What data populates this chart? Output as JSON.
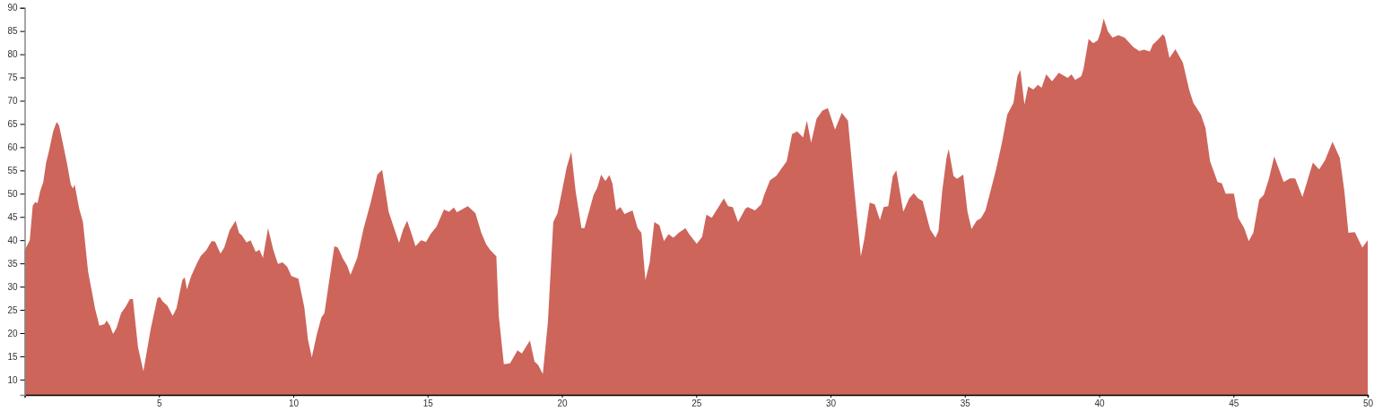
{
  "chart_data": {
    "type": "area",
    "color": "#cd655b",
    "x": [
      0,
      0.19,
      0.3,
      0.39,
      0.48,
      0.58,
      0.69,
      0.8,
      0.91,
      1.06,
      1.19,
      1.28,
      1.43,
      1.57,
      1.72,
      1.8,
      1.86,
      2.03,
      2.17,
      2.36,
      2.62,
      2.78,
      2.97,
      3.05,
      3.17,
      3.29,
      3.42,
      3.59,
      3.75,
      3.92,
      4.03,
      4.22,
      4.42,
      4.7,
      4.94,
      5.03,
      5.14,
      5.31,
      5.51,
      5.65,
      5.87,
      5.96,
      6.04,
      6.2,
      6.43,
      6.56,
      6.76,
      6.96,
      7.09,
      7.29,
      7.43,
      7.63,
      7.85,
      7.98,
      8.09,
      8.26,
      8.41,
      8.6,
      8.74,
      8.87,
      9.06,
      9.26,
      9.43,
      9.6,
      9.77,
      9.93,
      10.19,
      10.41,
      10.55,
      10.69,
      10.88,
      11.05,
      11.16,
      11.33,
      11.53,
      11.66,
      11.85,
      12,
      12.13,
      12.38,
      12.61,
      12.88,
      13.13,
      13.31,
      13.55,
      13.94,
      14.09,
      14.24,
      14.44,
      14.55,
      14.76,
      14.94,
      15.11,
      15.33,
      15.61,
      15.8,
      15.98,
      16.09,
      16.5,
      16.78,
      17,
      17.18,
      17.34,
      17.56,
      17.65,
      17.84,
      18.07,
      18.35,
      18.51,
      18.81,
      18.98,
      19.12,
      19.29,
      19.48,
      19.68,
      19.84,
      20.18,
      20.35,
      20.51,
      20.73,
      20.84,
      21.18,
      21.32,
      21.46,
      21.62,
      21.77,
      21.88,
      22.02,
      22.18,
      22.33,
      22.63,
      22.82,
      22.96,
      23.11,
      23.27,
      23.44,
      23.63,
      23.8,
      23.97,
      24.15,
      24.35,
      24.6,
      24.74,
      25.02,
      25.22,
      25.38,
      25.58,
      25.86,
      26.03,
      26.19,
      26.36,
      26.56,
      26.83,
      26.92,
      27.19,
      27.42,
      27.53,
      27.75,
      27.98,
      28.37,
      28.57,
      28.76,
      28.98,
      29.12,
      29.28,
      29.48,
      29.7,
      29.9,
      30.17,
      30.42,
      30.65,
      30.87,
      31.13,
      31.26,
      31.46,
      31.65,
      31.84,
      31.98,
      32.15,
      32.32,
      32.45,
      32.71,
      32.93,
      33.1,
      33.26,
      33.43,
      33.71,
      33.91,
      34.02,
      34.16,
      34.32,
      34.4,
      34.58,
      34.71,
      34.94,
      35.1,
      35.25,
      35.44,
      35.6,
      35.77,
      35.99,
      36.16,
      36.38,
      36.58,
      36.81,
      36.96,
      37.07,
      37.22,
      37.36,
      37.55,
      37.72,
      37.86,
      38.03,
      38.25,
      38.5,
      38.83,
      38.97,
      39.11,
      39.34,
      39.42,
      39.61,
      39.78,
      39.95,
      40.06,
      40.17,
      40.33,
      40.5,
      40.72,
      40.95,
      41.28,
      41.5,
      41.67,
      41.89,
      42,
      42.17,
      42.37,
      42.45,
      42.62,
      42.84,
      43.12,
      43.35,
      43.51,
      43.79,
      43.96,
      44.13,
      44.41,
      44.57,
      44.71,
      45.02,
      45.18,
      45.4,
      45.57,
      45.74,
      45.96,
      46.13,
      46.32,
      46.52,
      46.87,
      47.1,
      47.3,
      47.57,
      47.96,
      48.19,
      48.41,
      48.69,
      48.96,
      49.13,
      49.28,
      49.52,
      49.8,
      50
    ],
    "values": [
      37.8,
      40,
      47.4,
      48.2,
      48,
      50.6,
      52.4,
      56.7,
      59.3,
      63.4,
      65.4,
      64.7,
      60.6,
      56.7,
      51.9,
      51.1,
      52,
      46.8,
      43.9,
      33.3,
      25.3,
      21.6,
      21.9,
      22.7,
      21.7,
      19.8,
      21.1,
      24.3,
      25.6,
      27.3,
      27.3,
      16.9,
      11.8,
      21.1,
      27.5,
      27.8,
      26.8,
      25.9,
      23.7,
      25.3,
      31.4,
      32,
      29.4,
      32.3,
      35.2,
      36.6,
      37.8,
      39.8,
      39.7,
      37.1,
      38.4,
      42.1,
      44.2,
      41.6,
      41,
      39.5,
      40,
      37.5,
      37.9,
      36.2,
      42.6,
      37.8,
      34.9,
      35.2,
      34.3,
      32.3,
      31.7,
      25.6,
      18.5,
      14.8,
      19.8,
      23.4,
      24.3,
      31,
      38.7,
      38.4,
      36,
      34.6,
      32.5,
      36.2,
      42.3,
      48.1,
      54.1,
      55.1,
      46.1,
      39.4,
      42.3,
      44.2,
      40.7,
      38.7,
      40,
      39.6,
      41.3,
      42.9,
      46.6,
      46.1,
      47,
      46,
      47.3,
      45.8,
      41.6,
      39.1,
      37.8,
      36.5,
      23.7,
      13.3,
      13.5,
      16.3,
      15.6,
      18.4,
      13.9,
      13.1,
      11.2,
      22.4,
      43.9,
      45.8,
      55.7,
      59,
      50.6,
      42.6,
      42.6,
      49.7,
      51.3,
      54.1,
      52.7,
      54,
      52.2,
      46.4,
      47.1,
      45.6,
      46.4,
      42.6,
      41.6,
      31.4,
      35.2,
      43.9,
      43.2,
      39.8,
      41.3,
      40.5,
      41.6,
      42.6,
      41.3,
      39.2,
      40.7,
      45.5,
      44.8,
      47.4,
      49,
      47.3,
      47.1,
      43.9,
      46.8,
      47.1,
      46.4,
      47.7,
      49.7,
      52.9,
      53.8,
      57,
      62.8,
      63.4,
      62.1,
      65.7,
      61,
      66.1,
      67.9,
      68.4,
      63.8,
      67.4,
      65.7,
      51.9,
      36.5,
      40.3,
      48.1,
      47.7,
      44.3,
      47.1,
      47.3,
      53.8,
      55,
      46.1,
      49,
      50.1,
      49,
      48.4,
      42.3,
      40.5,
      42,
      50.6,
      57.7,
      59.6,
      53.8,
      53.2,
      54.1,
      46.1,
      42.4,
      44.2,
      44.7,
      46.4,
      51.3,
      55.1,
      60.9,
      67,
      69.5,
      75.3,
      76.6,
      69.2,
      73.1,
      72.4,
      73.4,
      72.8,
      75.7,
      74.2,
      76,
      74.9,
      75.7,
      74.5,
      75.3,
      76.9,
      83.3,
      82.4,
      83,
      84.9,
      87.7,
      84.9,
      83.6,
      84.1,
      83.6,
      81.5,
      80.7,
      81,
      80.6,
      82.1,
      83,
      84.3,
      83.8,
      79.2,
      81.1,
      78.2,
      72.4,
      69.5,
      67,
      64.1,
      57,
      52.5,
      52.2,
      50,
      50,
      44.8,
      42.6,
      39.8,
      41.6,
      48.7,
      49.7,
      53.2,
      58,
      52.5,
      53.3,
      53.3,
      49.3,
      56.7,
      55.2,
      57.2,
      61.2,
      57.7,
      50.6,
      41.6,
      41.7,
      38.4,
      40
    ],
    "xlim": [
      0,
      50
    ],
    "ylim": [
      6.7,
      90
    ],
    "xticks": [
      5,
      10,
      15,
      20,
      25,
      30,
      35,
      40,
      45,
      50
    ],
    "yticks": [
      10,
      15,
      20,
      25,
      30,
      35,
      40,
      45,
      50,
      55,
      60,
      65,
      70,
      75,
      80,
      85,
      90
    ]
  }
}
